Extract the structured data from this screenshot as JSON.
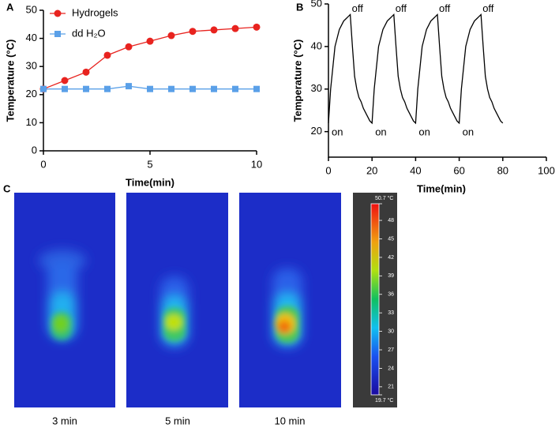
{
  "chart_data": [
    {
      "type": "line",
      "panel": "A",
      "xlabel": "Time(min)",
      "ylabel": "Temperature (°C)",
      "x": [
        0,
        1,
        2,
        3,
        4,
        5,
        6,
        7,
        8,
        9,
        10
      ],
      "series": [
        {
          "name": "Hydrogels",
          "color": "#e8231f",
          "marker": "circle",
          "values": [
            22,
            25,
            28,
            34,
            37,
            39,
            41,
            42.5,
            43,
            43.5,
            44
          ]
        },
        {
          "name": "dd H₂O",
          "color": "#5aa0e8",
          "marker": "square",
          "values": [
            22,
            22,
            22,
            22,
            23,
            22,
            22,
            22,
            22,
            22,
            22
          ]
        }
      ],
      "xlim": [
        0,
        10
      ],
      "xticks": [
        0,
        5,
        10
      ],
      "ylim": [
        0,
        50
      ],
      "yticks": [
        0,
        10,
        20,
        30,
        40,
        50
      ],
      "legend": "upper left"
    },
    {
      "type": "line",
      "panel": "B",
      "xlabel": "Time(min)",
      "ylabel": "Temperature (°C)",
      "color": "#000000",
      "x": [
        0,
        1,
        2,
        3,
        4,
        5,
        6,
        7,
        8,
        9,
        10,
        11,
        12,
        13,
        14,
        15,
        16,
        17,
        18,
        19,
        20,
        21,
        22,
        23,
        24,
        25,
        26,
        27,
        28,
        29,
        30,
        31,
        32,
        33,
        34,
        35,
        36,
        37,
        38,
        39,
        40,
        41,
        42,
        43,
        44,
        45,
        46,
        47,
        48,
        49,
        50,
        51,
        52,
        53,
        54,
        55,
        56,
        57,
        58,
        59,
        60,
        61,
        62,
        63,
        64,
        65,
        66,
        67,
        68,
        69,
        70,
        71,
        72,
        73,
        74,
        75,
        76,
        77,
        78,
        79,
        80
      ],
      "values": [
        22,
        30,
        35,
        40,
        42,
        44,
        45,
        46,
        46.5,
        47,
        47.5,
        40,
        33,
        30,
        28,
        27,
        25.5,
        24.5,
        23.5,
        22.5,
        22,
        30,
        35,
        40,
        42,
        44,
        45,
        46,
        46.5,
        47,
        47.5,
        40,
        33,
        30,
        28,
        27,
        25.5,
        24.5,
        23.5,
        22.5,
        22,
        30,
        35,
        40,
        42,
        44,
        45,
        46,
        46.5,
        47,
        47.5,
        40,
        33,
        30,
        28,
        27,
        25.5,
        24.5,
        23.5,
        22.5,
        22,
        30,
        35,
        40,
        42,
        44,
        45,
        46,
        46.5,
        47,
        47.5,
        40,
        33,
        30,
        28,
        27,
        25.5,
        24.5,
        23.5,
        22.5,
        22
      ],
      "xlim": [
        0,
        100
      ],
      "xticks": [
        0,
        20,
        40,
        60,
        80,
        100
      ],
      "ylim": [
        14,
        50
      ],
      "yticks": [
        20,
        30,
        40,
        50
      ],
      "annotations": [
        {
          "text": "off",
          "x": 10,
          "y": 47.5,
          "color": "#e8231f"
        },
        {
          "text": "off",
          "x": 30,
          "y": 47.5,
          "color": "#e8231f"
        },
        {
          "text": "off",
          "x": 50,
          "y": 47.5,
          "color": "#e8231f"
        },
        {
          "text": "off",
          "x": 70,
          "y": 47.5,
          "color": "#e8231f"
        },
        {
          "text": "on",
          "x": 0,
          "y": 22,
          "color": "#1aaa3a"
        },
        {
          "text": "on",
          "x": 20,
          "y": 22,
          "color": "#1aaa3a"
        },
        {
          "text": "on",
          "x": 40,
          "y": 22,
          "color": "#1aaa3a"
        },
        {
          "text": "on",
          "x": 60,
          "y": 22,
          "color": "#1aaa3a"
        }
      ]
    }
  ],
  "panel_c": {
    "panel": "C",
    "images": [
      "3 min",
      "5 min",
      "10 min"
    ],
    "colorbar": {
      "range": [
        19.7,
        50.7
      ],
      "ticks": [
        {
          "value": 50.7,
          "label": "50.7 °C"
        },
        48,
        45,
        42,
        39,
        36,
        33,
        30,
        27,
        24,
        21,
        {
          "value": 19.7,
          "label": "19.7 °C"
        }
      ]
    }
  }
}
